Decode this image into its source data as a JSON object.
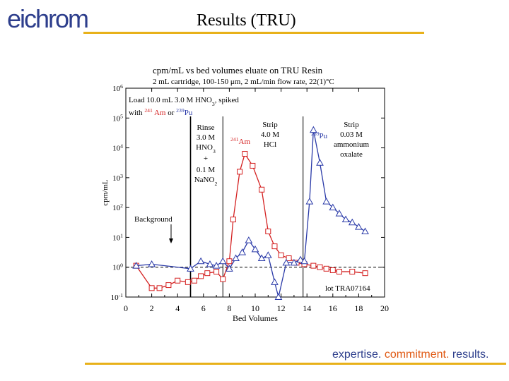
{
  "logo": "eichrom",
  "slide_title": "Results (TRU)",
  "tagline": [
    "expertise.",
    " commitment.",
    " results."
  ],
  "colors": {
    "brand_blue": "#2d3e8c",
    "brand_orange": "#e05a14",
    "rule": "#e8b11a",
    "am_series": "#d42020",
    "pu_series": "#2a3aa8"
  },
  "chart_data": {
    "type": "line",
    "title": "cpm/mL vs bed volumes eluate on TRU Resin",
    "subtitle": "2 mL cartridge, 100-150 μm, 2 mL/min flow rate, 22(1)°C",
    "xlabel": "Bed Volumes",
    "ylabel": "cpm/mL",
    "xlim": [
      0,
      20
    ],
    "x_ticks": [
      "0",
      "2",
      "4",
      "6",
      "8",
      "10",
      "12",
      "14",
      "16",
      "18",
      "20"
    ],
    "ylim_log10": [
      -1,
      6
    ],
    "y_tick_exponents": [
      "-1",
      "0",
      "1",
      "2",
      "3",
      "4",
      "5",
      "6"
    ],
    "background_level": 0.75,
    "background_label": "Background",
    "load_note": [
      "Load 10.0 mL 3.0 M HNO",
      "3",
      ", spiked"
    ],
    "load_note2": [
      "with ",
      "241",
      " Am",
      " or ",
      "239",
      "Pu"
    ],
    "phase_lines": [
      5.0,
      7.5,
      13.7
    ],
    "phase_labels": {
      "rinse": [
        "Rinse",
        "3.0 M",
        "HNO",
        "3",
        "+",
        "0.1 M",
        "NaNO",
        "2"
      ],
      "strip1": [
        "Strip",
        "4.0 M",
        "HCl"
      ],
      "strip2": [
        "Strip",
        "0.03 M",
        "ammonium",
        "oxalate"
      ]
    },
    "lot": "lot TRA07164",
    "series": [
      {
        "name": "241Am",
        "label_sup": "241",
        "label": "Am",
        "marker": "square",
        "x": [
          0.8,
          2.0,
          2.6,
          3.3,
          4.0,
          4.8,
          5.3,
          5.8,
          6.3,
          7.0,
          7.5,
          8.0,
          8.3,
          8.8,
          9.2,
          9.8,
          10.5,
          11.0,
          11.5,
          12.0,
          12.6,
          13.2,
          13.8,
          14.5,
          15.0,
          15.5,
          16.0,
          16.5,
          17.5,
          18.5
        ],
        "y_log10": [
          0.05,
          -0.7,
          -0.7,
          -0.6,
          -0.45,
          -0.5,
          -0.45,
          -0.3,
          -0.2,
          -0.15,
          -0.4,
          0.2,
          1.6,
          3.2,
          3.8,
          3.4,
          2.6,
          1.2,
          0.7,
          0.4,
          0.3,
          0.15,
          0.1,
          0.05,
          0.0,
          -0.05,
          -0.1,
          -0.15,
          -0.15,
          -0.2
        ]
      },
      {
        "name": "239Pu",
        "label_sup": "239",
        "label": "Pu",
        "marker": "triangle",
        "x": [
          0.8,
          2.0,
          5.0,
          5.8,
          6.5,
          7.0,
          7.5,
          8.0,
          8.5,
          9.0,
          9.5,
          10.0,
          10.5,
          11.0,
          11.5,
          11.8,
          12.4,
          13.0,
          13.5,
          13.8,
          14.2,
          14.5,
          15.0,
          15.5,
          16.0,
          16.5,
          17.0,
          17.5,
          18.0,
          18.5
        ],
        "y_log10": [
          0.05,
          0.1,
          -0.05,
          0.2,
          0.1,
          0.05,
          0.2,
          -0.05,
          0.3,
          0.5,
          0.9,
          0.6,
          0.3,
          0.4,
          -0.5,
          -1.0,
          0.15,
          0.15,
          0.25,
          0.2,
          2.2,
          4.6,
          3.5,
          2.2,
          2.0,
          1.8,
          1.6,
          1.5,
          1.35,
          1.2
        ]
      }
    ]
  }
}
